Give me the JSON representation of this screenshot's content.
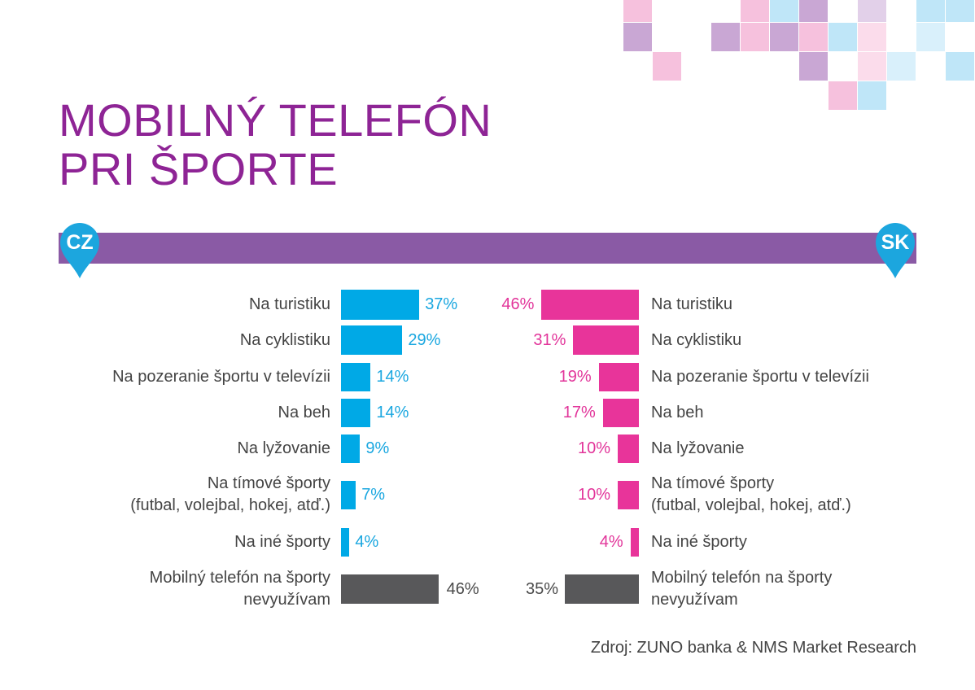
{
  "title": {
    "line1": "MOBILNÝ TELEFÓN",
    "line2": "PRI ŠPORTE"
  },
  "badges": {
    "left": "CZ",
    "right": "SK"
  },
  "colors": {
    "title": "#8e2495",
    "band": "#8a5aa5",
    "pin": "#1ca6de",
    "cz_bar": "#00a9e6",
    "cz_text": "#1aa7e0",
    "sk_bar": "#e8349a",
    "sk_text": "#e2359a",
    "none_bar": "#58585a",
    "none_text": "#4a4a4a",
    "label_text": "#444444"
  },
  "chart_data": {
    "type": "bar",
    "orientation": "horizontal",
    "layout": "diverging",
    "unit": "%",
    "categories": [
      "Na turistiku",
      "Na cyklistiku",
      "Na pozeranie športu v televízii",
      "Na beh",
      "Na lyžovanie",
      "Na tímové športy\n(futbal, volejbal, hokej, atď.)",
      "Na iné športy",
      "Mobilný telefón na športy\nnevyužívam"
    ],
    "series": [
      {
        "name": "CZ",
        "values": [
          37,
          29,
          14,
          14,
          9,
          7,
          4,
          46
        ],
        "labels": [
          "37%",
          "29%",
          "14%",
          "14%",
          "9%",
          "7%",
          "4%",
          "46%"
        ]
      },
      {
        "name": "SK",
        "values": [
          46,
          31,
          19,
          17,
          10,
          10,
          4,
          35
        ],
        "labels": [
          "46%",
          "31%",
          "19%",
          "17%",
          "10%",
          "10%",
          "4%",
          "35%"
        ]
      }
    ],
    "highlighted_category_index": 7,
    "xlim": [
      0,
      50
    ]
  },
  "source": "Zdroj: ZUNO banka & NMS Market Research"
}
